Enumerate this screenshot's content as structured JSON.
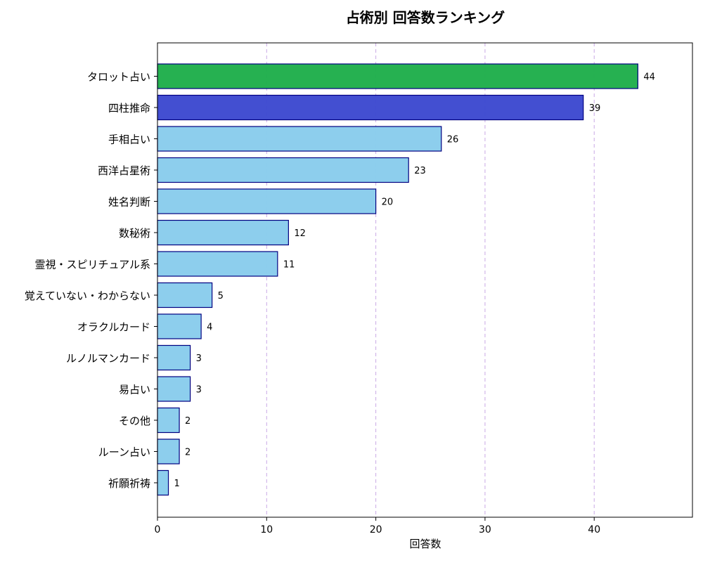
{
  "chart_data": {
    "type": "bar",
    "orientation": "horizontal",
    "title": "占術別 回答数ランキング",
    "xlabel": "回答数",
    "ylabel": "",
    "xlim": [
      0,
      49
    ],
    "xticks": [
      "0",
      "10",
      "20",
      "30",
      "40"
    ],
    "grid": "vertical dashed",
    "categories": [
      "タロット占い",
      "四柱推命",
      "手相占い",
      "西洋占星術",
      "姓名判断",
      "数秘術",
      "霊視・スピリチュアル系",
      "覚えていない・わからない",
      "オラクルカード",
      "ルノルマンカード",
      "易占い",
      "その他",
      "ルーン占い",
      "祈願祈祷"
    ],
    "values": [
      44,
      39,
      26,
      23,
      20,
      12,
      11,
      5,
      4,
      3,
      3,
      2,
      2,
      1
    ],
    "value_labels": [
      "44",
      "39",
      "26",
      "23",
      "20",
      "12",
      "11",
      "5",
      "4",
      "3",
      "3",
      "2",
      "2",
      "1"
    ],
    "colors": {
      "rank1": "#1fae4b",
      "rank2": "#3d49cf",
      "default": "#89ccec",
      "edge": "#000080",
      "grid": "#c9a9e6"
    }
  }
}
